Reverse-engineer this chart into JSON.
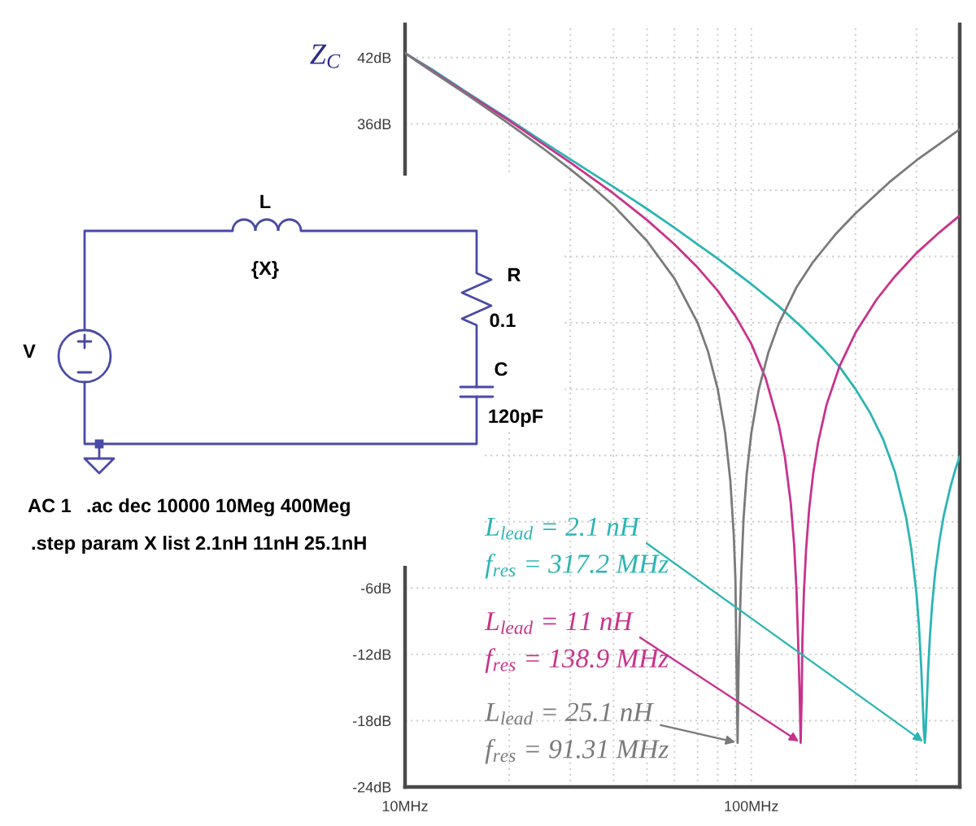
{
  "chart_data": {
    "type": "line",
    "ylabel": "Z$_{C}$",
    "log": "x",
    "grid": true,
    "xlim": [
      10,
      400
    ],
    "ylim": [
      -24,
      45
    ],
    "xticks": [
      {
        "value": 10,
        "label": "10MHz"
      },
      {
        "value": 20,
        "label": null
      },
      {
        "value": 30,
        "label": null
      },
      {
        "value": 40,
        "label": null
      },
      {
        "value": 50,
        "label": null
      },
      {
        "value": 60,
        "label": null
      },
      {
        "value": 70,
        "label": null
      },
      {
        "value": 80,
        "label": null
      },
      {
        "value": 90,
        "label": null
      },
      {
        "value": 100,
        "label": "100MHz"
      },
      {
        "value": 200,
        "label": null
      },
      {
        "value": 300,
        "label": null
      }
    ],
    "yticks": [
      {
        "value": -24,
        "label": "-24dB"
      },
      {
        "value": -18,
        "label": "-18dB"
      },
      {
        "value": -12,
        "label": "-12dB"
      },
      {
        "value": -6,
        "label": "-6dB"
      },
      {
        "value": 0,
        "label": null
      },
      {
        "value": 6,
        "label": null
      },
      {
        "value": 12,
        "label": null
      },
      {
        "value": 18,
        "label": null
      },
      {
        "value": 24,
        "label": null
      },
      {
        "value": 30,
        "label": null
      },
      {
        "value": 36,
        "label": "36dB"
      },
      {
        "value": 42,
        "label": "42dB"
      }
    ],
    "series": [
      {
        "color": "#2db4b4",
        "x": [
          10,
          12,
          15,
          20,
          25,
          30,
          40,
          50,
          60,
          70,
          80,
          100,
          120,
          140,
          160,
          180,
          200,
          220,
          240,
          260,
          280,
          290,
          300,
          305,
          310,
          313,
          315,
          317.2,
          319,
          321,
          324,
          328,
          333,
          340,
          350,
          360,
          375,
          390,
          400
        ],
        "values": [
          42.4,
          40.9,
          38.9,
          36.4,
          34.4,
          32.8,
          30.3,
          28.3,
          26.6,
          25.1,
          23.8,
          21.5,
          19.5,
          17.6,
          15.8,
          14.0,
          12.0,
          9.9,
          7.5,
          4.5,
          0.4,
          -2.5,
          -6.5,
          -9.4,
          -13.5,
          -16.7,
          -18.9,
          -20.0,
          -18.9,
          -16.8,
          -13.6,
          -10.4,
          -7.5,
          -4.5,
          -1.6,
          0.6,
          3.0,
          4.9,
          5.9
        ]
      },
      {
        "color": "#c8328c",
        "x": [
          10,
          12,
          15,
          20,
          25,
          30,
          40,
          50,
          60,
          70,
          80,
          90,
          100,
          110,
          120,
          125,
          130,
          133,
          135,
          136.5,
          137.9,
          138.9,
          139.9,
          140.5,
          142,
          144,
          147,
          151,
          156,
          165,
          180,
          200,
          230,
          260,
          300,
          350,
          400
        ],
        "values": [
          42.4,
          40.8,
          38.8,
          36.3,
          34.2,
          32.5,
          29.7,
          27.3,
          25.1,
          23.0,
          20.9,
          18.6,
          16.1,
          13.0,
          8.8,
          5.9,
          1.7,
          -2.1,
          -6.0,
          -10.6,
          -15.3,
          -20.0,
          -15.4,
          -10.7,
          -6.2,
          -2.5,
          1.2,
          4.4,
          7.2,
          10.6,
          14.1,
          17.1,
          20.1,
          22.2,
          24.3,
          26.2,
          27.7
        ]
      },
      {
        "color": "#7a7a7a",
        "x": [
          10,
          12,
          15,
          20,
          25,
          30,
          35,
          40,
          50,
          60,
          70,
          75,
          80,
          84,
          87,
          89,
          90,
          90.6,
          91.31,
          92.0,
          93.4,
          95,
          97,
          100,
          105,
          112,
          120,
          135,
          150,
          175,
          200,
          250,
          300,
          350,
          400
        ],
        "values": [
          42.4,
          40.7,
          38.7,
          36.0,
          33.8,
          31.9,
          30.2,
          28.6,
          25.4,
          22.0,
          18.0,
          15.4,
          12.0,
          8.1,
          3.7,
          -1.2,
          -5.2,
          -12.4,
          -20.0,
          -12.3,
          -5.3,
          0.3,
          4.3,
          8.0,
          11.9,
          15.3,
          17.9,
          21.2,
          23.4,
          26.0,
          27.9,
          30.7,
          32.7,
          34.2,
          35.5
        ]
      }
    ],
    "annotations": [
      {
        "text": "L$_{lead}$ = 2.1 nH",
        "x": 317.2,
        "y": -20
      },
      "f$_{res}$ = 317.2 MHz",
      {
        "text": "L$_{lead}$ = 11 nH",
        "x": 138.9,
        "y": -20
      },
      "f$_{res}$ = 138.9 MHz",
      {
        "text": "L$_{lead}$ = 25.1 nH",
        "x": 91.31,
        "y": -20
      },
      "f$_{res}$ = 91.31 MHz",
      "L",
      "{X}",
      "R",
      "0.1",
      "C",
      "120pF",
      "V",
      "AC 1",
      ".ac dec 10000 10Meg 400Meg",
      ".step param X list 2.1nH 11nH 25.1nH"
    ]
  }
}
